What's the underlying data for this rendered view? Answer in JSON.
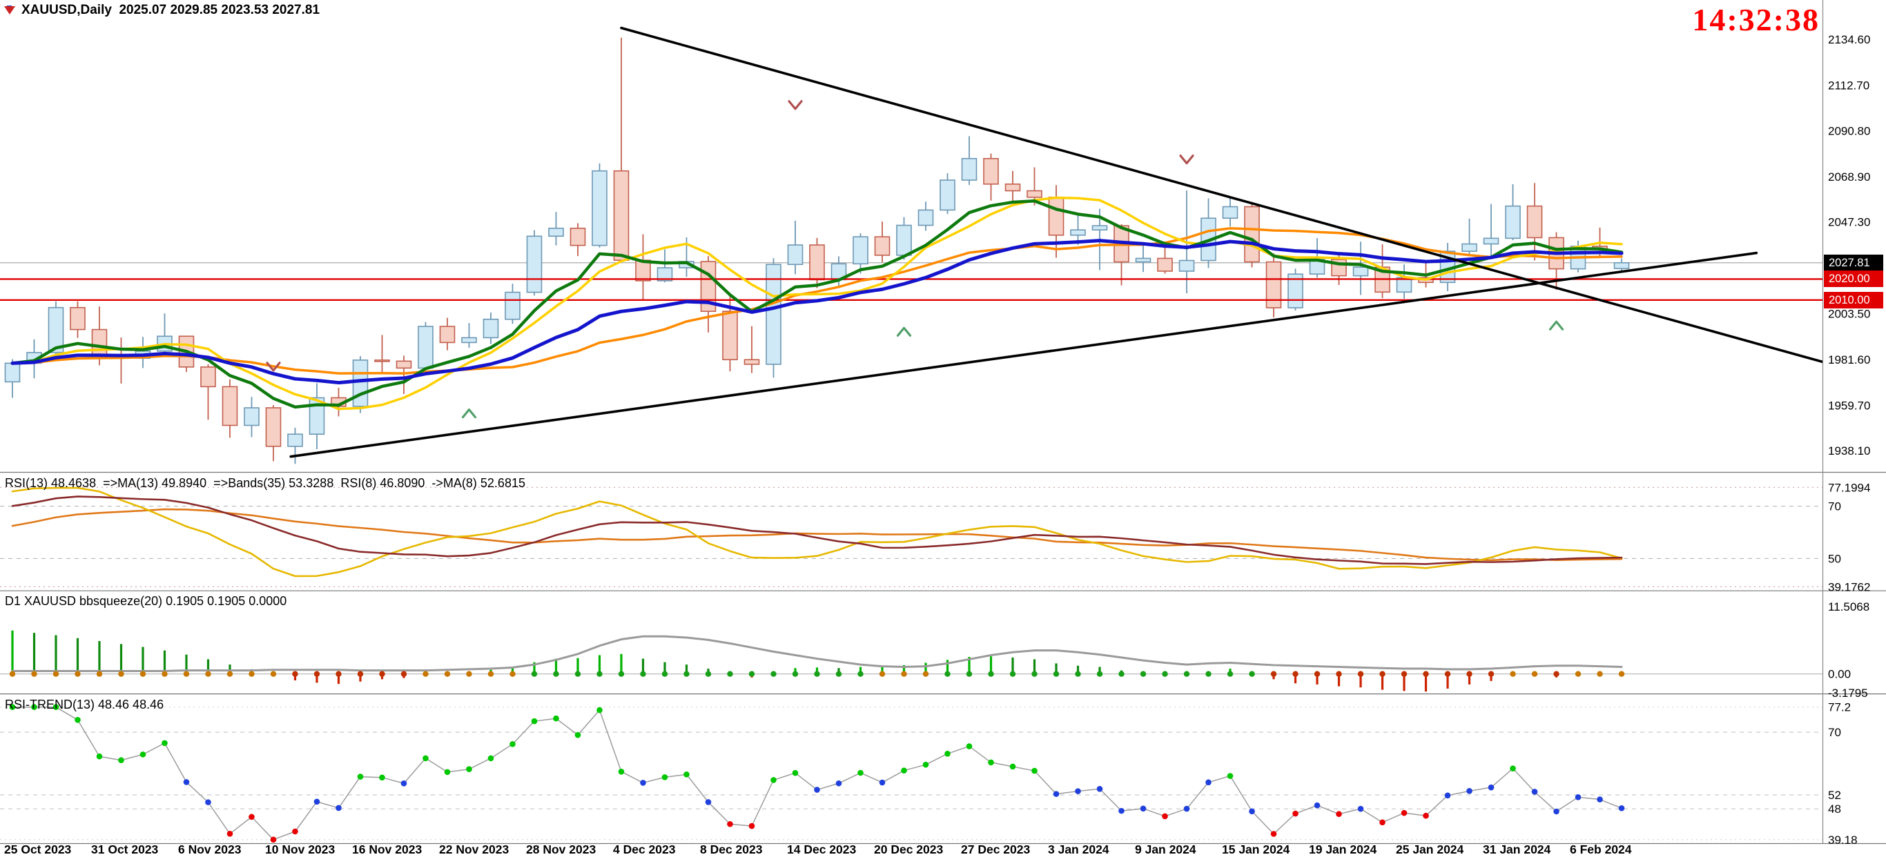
{
  "header": {
    "symbol_line": "XAUUSD,Daily  2025.07 2029.85 2023.53 2027.81",
    "clock": "14:32:38"
  },
  "price_tags": {
    "current": "2027.81",
    "level1": "2020.00",
    "level2": "2010.00"
  },
  "panels": {
    "rsi": {
      "title": "RSI(13) 48.4638  =>MA(13) 49.8940  =>Bands(35) 53.3288  RSI(8) 46.8090  ->MA(8) 52.6815",
      "axis": [
        {
          "text": "77.1994",
          "value": 77.1994
        },
        {
          "text": "70",
          "value": 70
        },
        {
          "text": "50",
          "value": 50
        },
        {
          "text": "39.1762",
          "value": 39.1762
        }
      ]
    },
    "squeeze": {
      "title": "D1 XAUUSD bbsqueeze(20) 0.1905 0.1905 0.0000",
      "axis": [
        {
          "text": "11.5068",
          "value": 11.5068
        },
        {
          "text": "0.00",
          "value": 0
        },
        {
          "text": "-3.1795",
          "value": -3.1795
        }
      ]
    },
    "rsitrend": {
      "title": "RSI-TREND(13) 48.46 48.46",
      "axis": [
        {
          "text": "77.2",
          "value": 77.2
        },
        {
          "text": "70",
          "value": 70
        },
        {
          "text": "52",
          "value": 52
        },
        {
          "text": "48",
          "value": 48
        },
        {
          "text": "39.18",
          "value": 39.18
        }
      ]
    }
  },
  "colors": {
    "up_fill": "#cfe9f6",
    "up_stroke": "#6d98b4",
    "down_fill": "#f6d0c4",
    "down_stroke": "#c2604e",
    "ma_green": "#0e7a0e",
    "ma_blue": "#1414cc",
    "ma_yellow": "#ffd000",
    "ma_orange": "#ff8a00",
    "trendline": "#000000",
    "level_line": "#e00000",
    "current_line": "#b8b8b8",
    "clock": "#ff0000",
    "tag_current_bg": "#000000",
    "tag_level_bg": "#e00000",
    "rsi_main": "#8a2a2a",
    "rsi_yellow": "#e6b800",
    "rsi_orange": "#e07818",
    "hist_up": "#00b400",
    "hist_up_dim": "#0f8a0f",
    "hist_down": "#cc2200",
    "squeeze_line": "#9a9a9a",
    "dot_squeeze_on": "#c87800",
    "dot_squeeze_off": "#18a018",
    "dot_squeeze_neg": "#c03000",
    "rt_line": "#9c9c9c",
    "rt_green": "#00c800",
    "rt_red": "#e80000",
    "rt_blue": "#2040dd",
    "marker_up": "#52a06a",
    "marker_down": "#b05050"
  },
  "chart_data": {
    "type": "candlestick",
    "symbol": "XAUUSD",
    "timeframe": "Daily",
    "last_ohlc": {
      "open": 2025.07,
      "high": 2029.85,
      "low": 2023.53,
      "close": 2027.81
    },
    "current_price": 2027.81,
    "price_axis_labels": [
      {
        "text": "2134.60",
        "value": 2134.6
      },
      {
        "text": "2112.70",
        "value": 2112.7
      },
      {
        "text": "2090.80",
        "value": 2090.8
      },
      {
        "text": "2068.90",
        "value": 2068.9
      },
      {
        "text": "2047.30",
        "value": 2047.3
      },
      {
        "text": "2003.50",
        "value": 2003.5
      },
      {
        "text": "1981.60",
        "value": 1981.6
      },
      {
        "text": "1959.70",
        "value": 1959.7
      },
      {
        "text": "1938.10",
        "value": 1938.1
      }
    ],
    "x_axis_labels": [
      {
        "index": 0,
        "text": "25 Oct 2023"
      },
      {
        "index": 4,
        "text": "31 Oct 2023"
      },
      {
        "index": 8,
        "text": "6 Nov 2023"
      },
      {
        "index": 12,
        "text": "10 Nov 2023"
      },
      {
        "index": 16,
        "text": "16 Nov 2023"
      },
      {
        "index": 20,
        "text": "22 Nov 2023"
      },
      {
        "index": 24,
        "text": "28 Nov 2023"
      },
      {
        "index": 28,
        "text": "4 Dec 2023"
      },
      {
        "index": 32,
        "text": "8 Dec 2023"
      },
      {
        "index": 36,
        "text": "14 Dec 2023"
      },
      {
        "index": 40,
        "text": "20 Dec 2023"
      },
      {
        "index": 44,
        "text": "27 Dec 2023"
      },
      {
        "index": 48,
        "text": "3 Jan 2024"
      },
      {
        "index": 52,
        "text": "9 Jan 2024"
      },
      {
        "index": 56,
        "text": "15 Jan 2024"
      },
      {
        "index": 60,
        "text": "19 Jan 2024"
      },
      {
        "index": 64,
        "text": "25 Jan 2024"
      },
      {
        "index": 68,
        "text": "31 Jan 2024"
      },
      {
        "index": 72,
        "text": "6 Feb 2024"
      }
    ],
    "candles": [
      [
        1970.9,
        1981.7,
        1963.3,
        1979.8
      ],
      [
        1979.8,
        1991.2,
        1972.6,
        1984.9
      ],
      [
        1984.9,
        2009.4,
        1981.5,
        2006.4
      ],
      [
        2006.4,
        2009.4,
        1991.9,
        1995.9
      ],
      [
        1995.9,
        2006.9,
        1978.8,
        1983.6
      ],
      [
        1983.6,
        1992.1,
        1970.1,
        1982.2
      ],
      [
        1982.2,
        1992.4,
        1977.5,
        1985.6
      ],
      [
        1985.6,
        2003.6,
        1983.9,
        1992.7
      ],
      [
        1992.7,
        1993.0,
        1975.6,
        1978.0
      ],
      [
        1978.0,
        1979.3,
        1952.8,
        1968.6
      ],
      [
        1968.6,
        1972.1,
        1944.2,
        1950.1
      ],
      [
        1950.1,
        1963.7,
        1944.5,
        1958.5
      ],
      [
        1958.5,
        1959.8,
        1933.0,
        1940.1
      ],
      [
        1940.1,
        1949.0,
        1931.7,
        1945.9
      ],
      [
        1945.9,
        1970.3,
        1938.7,
        1963.3
      ],
      [
        1963.3,
        1968.1,
        1954.4,
        1959.2
      ],
      [
        1959.2,
        1983.2,
        1956.0,
        1981.3
      ],
      [
        1981.3,
        1993.3,
        1975.1,
        1980.8
      ],
      [
        1980.8,
        1983.4,
        1965.1,
        1977.5
      ],
      [
        1977.5,
        1999.5,
        1975.4,
        1997.4
      ],
      [
        1997.4,
        2001.5,
        1986.0,
        1989.7
      ],
      [
        1989.7,
        1999.0,
        1987.2,
        1992.0
      ],
      [
        1992.0,
        2004.0,
        1989.0,
        2000.8
      ],
      [
        2000.8,
        2017.8,
        1998.6,
        2013.7
      ],
      [
        2013.7,
        2043.4,
        2012.1,
        2040.5
      ],
      [
        2040.5,
        2052.1,
        2036.1,
        2044.3
      ],
      [
        2044.3,
        2046.7,
        2031.0,
        2036.1
      ],
      [
        2036.1,
        2075.3,
        2035.1,
        2071.7
      ],
      [
        2071.7,
        2135.4,
        2064.8,
        2029.0
      ],
      [
        2029.0,
        2041.4,
        2009.7,
        2019.2
      ],
      [
        2019.2,
        2034.2,
        2018.5,
        2025.4
      ],
      [
        2025.4,
        2040.0,
        2021.1,
        2028.4
      ],
      [
        2028.4,
        2031.0,
        1994.5,
        2004.6
      ],
      [
        2004.6,
        2013.0,
        1975.9,
        1981.5
      ],
      [
        1981.5,
        1997.5,
        1975.1,
        1979.3
      ],
      [
        1979.3,
        2030.0,
        1972.9,
        2027.0
      ],
      [
        2027.0,
        2047.9,
        2022.3,
        2036.3
      ],
      [
        2036.3,
        2039.7,
        2015.7,
        2019.7
      ],
      [
        2019.7,
        2030.9,
        2016.1,
        2027.3
      ],
      [
        2027.3,
        2041.9,
        2022.6,
        2040.2
      ],
      [
        2040.2,
        2047.5,
        2028.0,
        2031.4
      ],
      [
        2031.4,
        2049.6,
        2029.2,
        2045.7
      ],
      [
        2045.7,
        2057.0,
        2043.1,
        2053.0
      ],
      [
        2053.0,
        2070.6,
        2051.1,
        2067.3
      ],
      [
        2067.3,
        2088.3,
        2065.0,
        2077.6
      ],
      [
        2077.6,
        2080.0,
        2057.5,
        2065.4
      ],
      [
        2065.4,
        2071.7,
        2057.1,
        2062.2
      ],
      [
        2062.2,
        2073.4,
        2055.2,
        2059.1
      ],
      [
        2059.1,
        2064.9,
        2030.2,
        2041.0
      ],
      [
        2041.0,
        2050.3,
        2036.3,
        2043.5
      ],
      [
        2043.5,
        2053.6,
        2024.3,
        2045.5
      ],
      [
        2045.5,
        2046.2,
        2017.0,
        2028.2
      ],
      [
        2028.2,
        2037.1,
        2023.4,
        2029.9
      ],
      [
        2029.9,
        2036.2,
        2022.6,
        2023.8
      ],
      [
        2023.8,
        2062.3,
        2013.2,
        2028.9
      ],
      [
        2028.9,
        2058.6,
        2025.3,
        2049.1
      ],
      [
        2049.1,
        2058.8,
        2045.1,
        2054.6
      ],
      [
        2054.6,
        2056.9,
        2025.6,
        2028.2
      ],
      [
        2028.2,
        2032.3,
        2001.7,
        2006.3
      ],
      [
        2006.3,
        2025.0,
        2005.0,
        2022.4
      ],
      [
        2022.4,
        2039.6,
        2020.7,
        2029.4
      ],
      [
        2029.4,
        2032.3,
        2017.2,
        2021.6
      ],
      [
        2021.6,
        2037.9,
        2012.4,
        2025.7
      ],
      [
        2025.7,
        2036.6,
        2010.9,
        2013.8
      ],
      [
        2013.8,
        2027.0,
        2010.6,
        2020.7
      ],
      [
        2020.7,
        2028.5,
        2016.0,
        2018.4
      ],
      [
        2018.4,
        2037.3,
        2014.2,
        2033.3
      ],
      [
        2033.3,
        2048.9,
        2031.6,
        2036.8
      ],
      [
        2036.8,
        2055.9,
        2030.0,
        2039.5
      ],
      [
        2039.5,
        2065.3,
        2038.6,
        2054.9
      ],
      [
        2054.9,
        2065.9,
        2028.9,
        2039.8
      ],
      [
        2039.8,
        2042.4,
        2014.9,
        2024.9
      ],
      [
        2024.9,
        2038.4,
        2023.2,
        2035.7
      ],
      [
        2035.7,
        2044.6,
        2030.7,
        2034.1
      ],
      [
        2025.07,
        2029.85,
        2023.53,
        2027.81
      ]
    ],
    "hlines": [
      {
        "value": 2020.0,
        "label": "2020.00"
      },
      {
        "value": 2010.0,
        "label": "2010.00"
      }
    ],
    "trendlines": [
      {
        "i1": 28,
        "p1": 2140.0,
        "i2": 83.5,
        "p2": 1979.7
      },
      {
        "i1": 12.8,
        "p1": 1935.2,
        "i2": 80.2,
        "p2": 2032.5
      }
    ],
    "markers": [
      {
        "index": 12,
        "price": 1978,
        "dir": "down"
      },
      {
        "index": 21,
        "price": 1956,
        "dir": "up"
      },
      {
        "index": 36,
        "price": 2103,
        "dir": "down"
      },
      {
        "index": 41,
        "price": 1995,
        "dir": "up"
      },
      {
        "index": 54,
        "price": 2077,
        "dir": "down"
      },
      {
        "index": 71,
        "price": 1998,
        "dir": "up"
      }
    ],
    "squeeze_hist": [
      7.4,
      7.0,
      6.6,
      6.1,
      5.6,
      5.1,
      4.6,
      4.0,
      3.3,
      2.5,
      1.6,
      0.8,
      -0.4,
      -1.1,
      -1.5,
      -1.7,
      -1.3,
      -0.9,
      -0.7,
      -0.3,
      0.2,
      0.4,
      0.7,
      1.2,
      2.0,
      2.6,
      2.7,
      3.2,
      3.4,
      2.6,
      2.0,
      1.6,
      0.9,
      0.1,
      -0.6,
      0.3,
      1.0,
      1.1,
      1.0,
      1.2,
      1.2,
      1.5,
      1.9,
      2.4,
      2.9,
      3.0,
      2.8,
      2.5,
      1.8,
      1.4,
      1.2,
      0.6,
      0.2,
      -0.2,
      -0.3,
      0.4,
      0.9,
      0.4,
      -0.9,
      -1.6,
      -1.8,
      -2.1,
      -2.3,
      -2.7,
      -2.9,
      -3.0,
      -2.5,
      -1.8,
      -1.2,
      -0.4,
      -0.2,
      -0.6,
      -0.4,
      -0.1,
      0.2
    ],
    "squeeze_curve": [
      0.5,
      0.5,
      0.5,
      0.5,
      0.5,
      0.5,
      0.5,
      0.5,
      0.6,
      0.6,
      0.6,
      0.6,
      0.7,
      0.7,
      0.7,
      0.7,
      0.6,
      0.6,
      0.6,
      0.6,
      0.7,
      0.8,
      0.9,
      1.1,
      1.6,
      2.4,
      3.4,
      4.8,
      5.9,
      6.4,
      6.4,
      6.2,
      5.8,
      5.2,
      4.5,
      3.8,
      3.2,
      2.6,
      2.1,
      1.6,
      1.3,
      1.2,
      1.3,
      1.8,
      2.5,
      3.2,
      3.7,
      4.0,
      4.0,
      3.7,
      3.3,
      2.8,
      2.3,
      1.9,
      1.6,
      1.8,
      1.9,
      1.7,
      1.5,
      1.4,
      1.3,
      1.2,
      1.1,
      1.0,
      0.9,
      0.9,
      0.8,
      0.8,
      0.9,
      1.1,
      1.3,
      1.4,
      1.4,
      1.3,
      1.2
    ],
    "indicator_levels": {
      "rsi": [
        77.1994,
        70,
        50,
        39.1762
      ],
      "squeeze": [
        11.5068,
        0,
        -3.1795
      ],
      "rsitrend": [
        77.2,
        70,
        52,
        48,
        39.18
      ]
    }
  }
}
